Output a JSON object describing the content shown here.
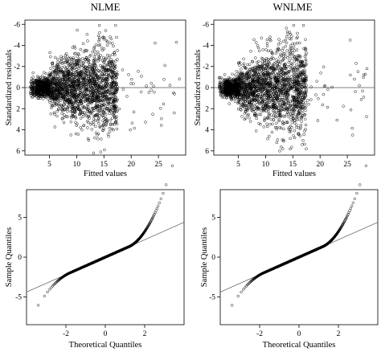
{
  "chart_data": [
    {
      "id": "nlme-resid",
      "type": "scatter",
      "title": "NLME",
      "xlabel": "Fitted values",
      "ylabel": "Standardized residuals",
      "xlim": [
        0.5,
        30
      ],
      "ylim": [
        6.4,
        -6.4
      ],
      "y_inverted": true,
      "xticks": [
        5,
        10,
        15,
        20,
        25
      ],
      "yticks": [
        -6,
        -4,
        -2,
        0,
        2,
        4,
        6
      ],
      "reference_line_y": 0,
      "point_style": "open-circle",
      "seed": 11,
      "description_points": "dense cloud of residuals around 0 for fitted values 1-17, sparse points at 18-29",
      "highlight_points": [
        [
          14.2,
          -5.2
        ],
        [
          13.1,
          6.2
        ],
        [
          15.1,
          5.9
        ],
        [
          28.3,
          -4.3
        ],
        [
          26.2,
          -2.1
        ],
        [
          27.9,
          2.4
        ]
      ]
    },
    {
      "id": "wnlme-resid",
      "type": "scatter",
      "title": "WNLME",
      "xlabel": "Fitted values",
      "ylabel": "Standardized residuals",
      "xlim": [
        0.5,
        30
      ],
      "ylim": [
        6.4,
        -6.4
      ],
      "y_inverted": true,
      "xticks": [
        5,
        10,
        15,
        20,
        25
      ],
      "yticks": [
        -6,
        -4,
        -2,
        0,
        2,
        4,
        6
      ],
      "reference_line_y": 0,
      "point_style": "open-circle",
      "seed": 23,
      "highlight_points": [
        [
          14.1,
          -5.1
        ],
        [
          12.6,
          6.0
        ],
        [
          28.6,
          -1.8
        ],
        [
          26.3,
          -0.8
        ],
        [
          28.0,
          0.9
        ]
      ]
    },
    {
      "id": "nlme-qq",
      "type": "scatter",
      "subtype": "qq",
      "xlabel": "Theoretical Quantiles",
      "ylabel": "Sample Quantiles",
      "xlim": [
        -4,
        4
      ],
      "ylim": [
        -8.5,
        8.5
      ],
      "xticks": [
        -2,
        0,
        2
      ],
      "yticks": [
        -5,
        0,
        5
      ],
      "reference_line": {
        "intercept": 0,
        "slope": 1.1
      },
      "point_style": "open-circle",
      "n": 1500,
      "upper_tail": {
        "start": 1.2,
        "scale": 1.6,
        "power": 2
      },
      "lower_tail": {
        "start": -1.8,
        "scale": 0.9,
        "power": 2
      }
    },
    {
      "id": "wnlme-qq",
      "type": "scatter",
      "subtype": "qq",
      "xlabel": "Theoretical Quantiles",
      "ylabel": "Sample Quantiles",
      "xlim": [
        -4,
        4
      ],
      "ylim": [
        -8.5,
        8.5
      ],
      "xticks": [
        -2,
        0,
        2
      ],
      "yticks": [
        -5,
        0,
        5
      ],
      "reference_line": {
        "intercept": 0,
        "slope": 1.1
      },
      "point_style": "open-circle",
      "n": 1500,
      "upper_tail": {
        "start": 1.2,
        "scale": 1.6,
        "power": 2
      },
      "lower_tail": {
        "start": -1.8,
        "scale": 0.9,
        "power": 2
      }
    }
  ]
}
